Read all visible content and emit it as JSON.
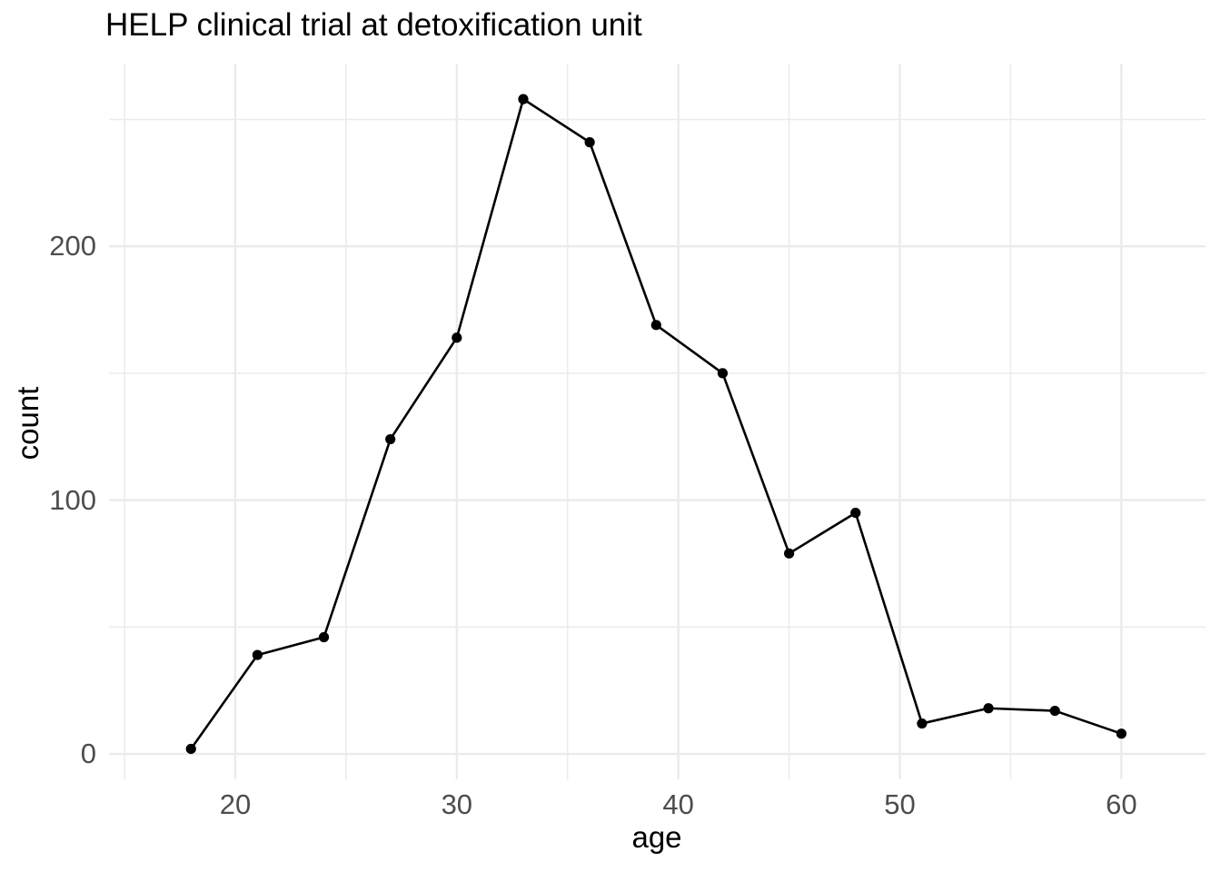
{
  "figure": {
    "background": "#ffffff"
  },
  "chart_data": {
    "type": "line",
    "title": "HELP clinical trial at detoxification unit",
    "xlabel": "age",
    "ylabel": "count",
    "series": [
      {
        "name": "count",
        "x": [
          18,
          21,
          24,
          27,
          30,
          33,
          36,
          39,
          42,
          45,
          48,
          51,
          54,
          57,
          60
        ],
        "y": [
          2,
          39,
          46,
          124,
          164,
          258,
          241,
          169,
          150,
          79,
          95,
          12,
          18,
          17,
          8
        ]
      }
    ],
    "xlim": [
      14.3,
      63.8
    ],
    "ylim": [
      -10,
      272
    ],
    "x_major_ticks": [
      20,
      30,
      40,
      50,
      60
    ],
    "x_minor_ticks": [
      15,
      25,
      35,
      45,
      55
    ],
    "y_major_ticks": [
      0,
      100,
      200
    ],
    "y_minor_ticks": [
      50,
      150,
      250
    ],
    "grid": "major-and-minor",
    "legend": "none",
    "styles": {
      "line_color": "#000000",
      "point_color": "#000000",
      "grid_major_color": "#ebebeb",
      "grid_minor_color": "#ebebeb",
      "tick_label_color": "#4d4d4d",
      "title_color": "#000000",
      "axis_title_color": "#000000",
      "panel_background": "#ffffff"
    }
  }
}
